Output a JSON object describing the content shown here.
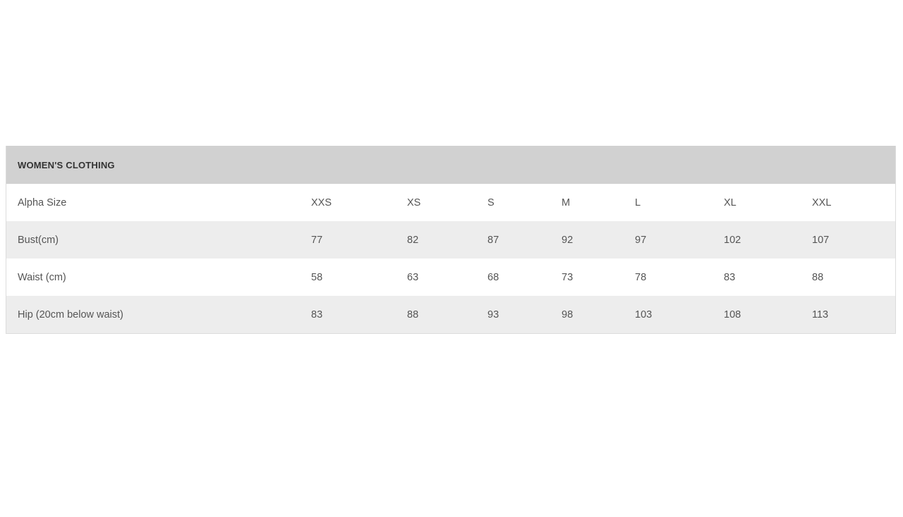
{
  "table": {
    "title": "WOMEN'S CLOTHING",
    "rows": [
      {
        "label": "Alpha Size",
        "values": [
          "XXS",
          "XS",
          "S",
          "M",
          "L",
          "XL",
          "XXL"
        ]
      },
      {
        "label": "Bust(cm)",
        "values": [
          "77",
          "82",
          "87",
          "92",
          "97",
          "102",
          "107"
        ]
      },
      {
        "label": "Waist (cm)",
        "values": [
          "58",
          "63",
          "68",
          "73",
          "78",
          "83",
          "88"
        ]
      },
      {
        "label": "Hip (20cm below waist)",
        "values": [
          "83",
          "88",
          "93",
          "98",
          "103",
          "108",
          "113"
        ]
      }
    ]
  }
}
